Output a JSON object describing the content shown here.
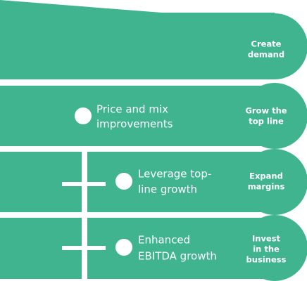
{
  "stages": [
    {
      "label": [
        "Create",
        "demand"
      ]
    },
    {
      "label": [
        "Grow the",
        "top line"
      ],
      "item": [
        "Price and mix",
        "improvements"
      ]
    },
    {
      "label": [
        "Expand",
        "margins"
      ],
      "item": [
        "Leverage top-",
        "line growth"
      ]
    },
    {
      "label": [
        "Invest",
        "in the",
        "business"
      ],
      "item": [
        "Enhanced",
        "EBITDA growth"
      ]
    }
  ]
}
